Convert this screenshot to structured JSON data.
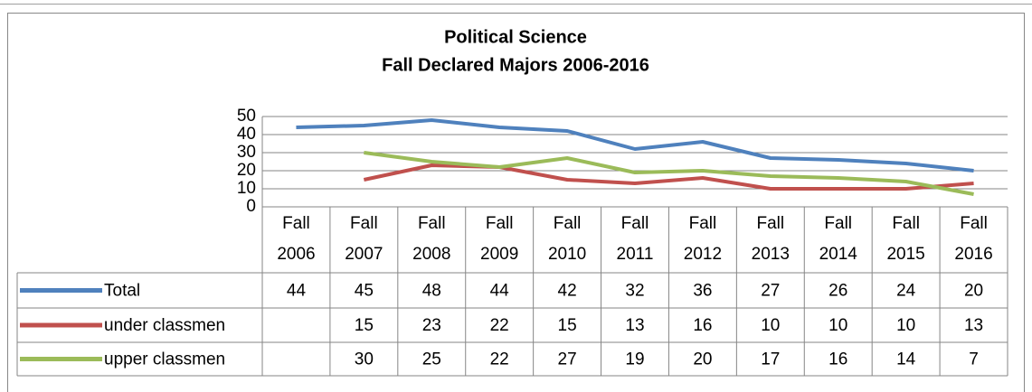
{
  "chart_data": {
    "type": "line",
    "title": "Political Science",
    "subtitle": "Fall Declared Majors 2006-2016",
    "categories": [
      "Fall 2006",
      "Fall 2007",
      "Fall 2008",
      "Fall 2009",
      "Fall 2010",
      "Fall 2011",
      "Fall 2012",
      "Fall 2013",
      "Fall 2014",
      "Fall 2015",
      "Fall 2016"
    ],
    "series": [
      {
        "name": "Total",
        "color": "#4f81bd",
        "values": [
          44,
          45,
          48,
          44,
          42,
          32,
          36,
          27,
          26,
          24,
          20
        ]
      },
      {
        "name": "under classmen",
        "color": "#c0504d",
        "values": [
          null,
          15,
          23,
          22,
          15,
          13,
          16,
          10,
          10,
          10,
          13
        ]
      },
      {
        "name": "upper classmen",
        "color": "#9bbb59",
        "values": [
          null,
          30,
          25,
          22,
          27,
          19,
          20,
          17,
          16,
          14,
          7
        ]
      }
    ],
    "ylim": [
      0,
      50
    ],
    "yticks": [
      0,
      10,
      20,
      30,
      40,
      50
    ],
    "grid": true,
    "data_table": true
  }
}
